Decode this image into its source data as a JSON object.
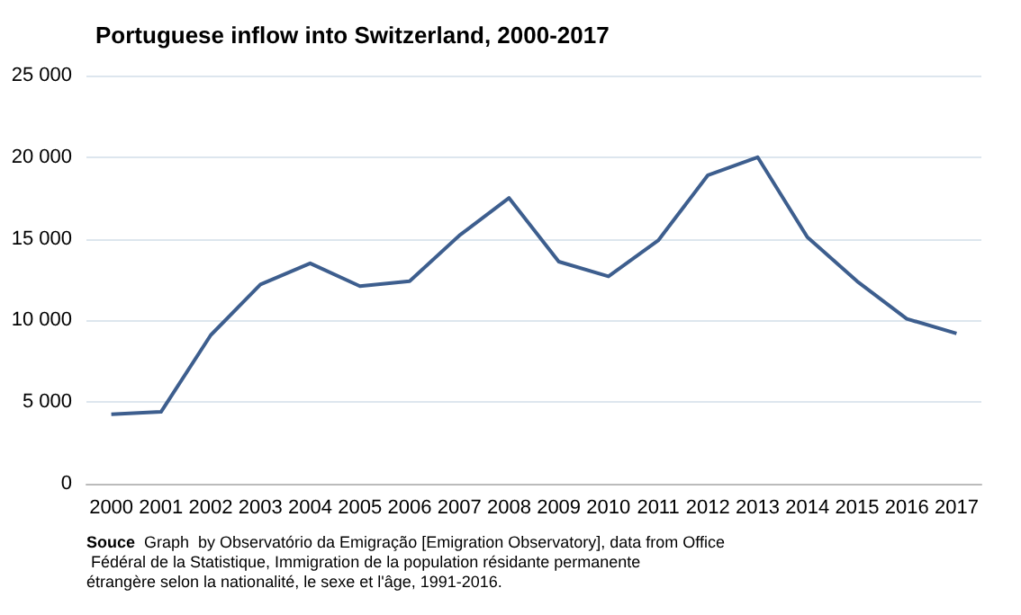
{
  "chart_data": {
    "type": "line",
    "title": "Portuguese inflow into Switzerland, 2000-2017",
    "categories": [
      "2000",
      "2001",
      "2002",
      "2003",
      "2004",
      "2005",
      "2006",
      "2007",
      "2008",
      "2009",
      "2010",
      "2011",
      "2012",
      "2013",
      "2014",
      "2015",
      "2016",
      "2017"
    ],
    "series": [
      {
        "color": "#3d5e8e",
        "values": [
          4250,
          4400,
          9100,
          12200,
          13500,
          12100,
          12400,
          15200,
          17500,
          13600,
          12700,
          14900,
          18900,
          20000,
          15100,
          12400,
          10100,
          9200
        ]
      }
    ],
    "ylim": [
      0,
      25000
    ],
    "yticks": [
      {
        "value": 0,
        "label": "0"
      },
      {
        "value": 5000,
        "label": "5 000"
      },
      {
        "value": 10000,
        "label": "10 000"
      },
      {
        "value": 15000,
        "label": "15 000"
      },
      {
        "value": 20000,
        "label": "20 000"
      },
      {
        "value": 25000,
        "label": "25 000"
      }
    ],
    "grid": "y",
    "marker": "none",
    "line_style": "solid",
    "annotations": [
      "Souce  Graph  by Observatório da Emigração [Emigration Observatory], data from Office Fédéral de la Statistique, Immigration de la population résidante permanente étrangère selon la nationalité, le sexe et l'âge, 1991-2016."
    ]
  }
}
